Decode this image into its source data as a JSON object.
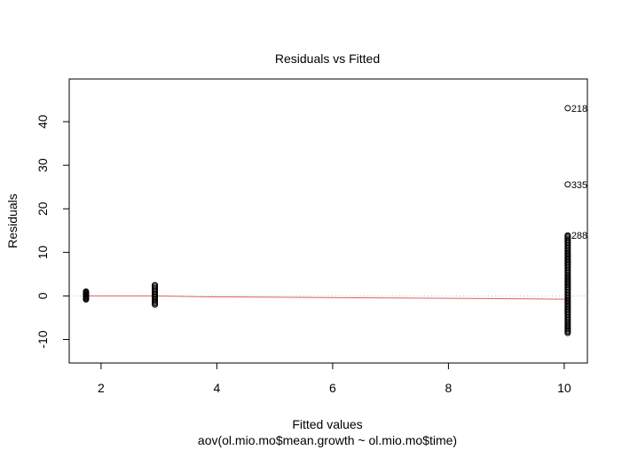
{
  "chart_data": {
    "type": "scatter",
    "title": "Residuals vs Fitted",
    "xlabel": "Fitted values",
    "ylabel": "Residuals",
    "caption": "aov(ol.mio.mo$mean.growth ~ ol.mio.mo$time)",
    "xlim": [
      1.45,
      10.4
    ],
    "ylim": [
      -15.4,
      49.8
    ],
    "xticks": [
      2,
      4,
      6,
      8,
      10
    ],
    "yticks": [
      -10,
      0,
      10,
      20,
      30,
      40
    ],
    "grid": false,
    "zero_line": {
      "y": 0,
      "color": "#bfbfbf",
      "style": "dotted"
    },
    "smoother": {
      "color": "#e06060",
      "x": [
        1.74,
        2.93,
        3.8,
        5.6,
        7.4,
        9.2,
        10.06
      ],
      "y": [
        0.0,
        0.0,
        -0.2,
        -0.35,
        -0.5,
        -0.65,
        -0.75
      ]
    },
    "groups": [
      {
        "x": 1.74,
        "residuals": [
          -0.8,
          -0.6,
          -0.4,
          -0.2,
          0.0,
          0.2,
          0.4,
          0.6,
          0.8,
          1.0
        ]
      },
      {
        "x": 2.93,
        "residuals": [
          -2.0,
          -1.7,
          -1.4,
          -1.1,
          -0.8,
          -0.5,
          -0.2,
          0.1,
          0.4,
          0.7,
          1.0,
          1.3,
          1.6,
          1.9,
          2.2,
          2.5
        ]
      },
      {
        "x": 10.06,
        "residuals": [
          -8.5,
          -8.2,
          -7.9,
          -7.6,
          -7.3,
          -7.0,
          -6.7,
          -6.4,
          -6.1,
          -5.8,
          -5.5,
          -5.2,
          -4.9,
          -4.6,
          -4.3,
          -4.0,
          -3.7,
          -3.4,
          -3.1,
          -2.8,
          -2.5,
          -2.2,
          -1.9,
          -1.6,
          -1.3,
          -1.0,
          -0.7,
          -0.4,
          -0.1,
          0.2,
          0.5,
          0.8,
          1.1,
          1.4,
          1.7,
          2.0,
          2.3,
          2.6,
          2.9,
          3.2,
          3.5,
          3.8,
          4.1,
          4.4,
          4.7,
          5.0,
          5.3,
          5.6,
          5.9,
          6.2,
          6.5,
          6.8,
          7.1,
          7.4,
          7.7,
          8.0,
          8.3,
          8.6,
          8.9,
          9.2,
          9.5,
          9.8,
          10.1,
          10.4,
          10.7,
          11.0,
          11.3,
          11.6,
          11.9,
          12.2,
          12.5,
          12.8,
          13.1,
          13.4,
          13.7
        ]
      }
    ],
    "outliers": [
      {
        "label": "218",
        "x": 10.06,
        "y": 43.1
      },
      {
        "label": "335",
        "x": 10.06,
        "y": 25.6
      },
      {
        "label": "288",
        "x": 10.06,
        "y": 13.9
      }
    ]
  }
}
